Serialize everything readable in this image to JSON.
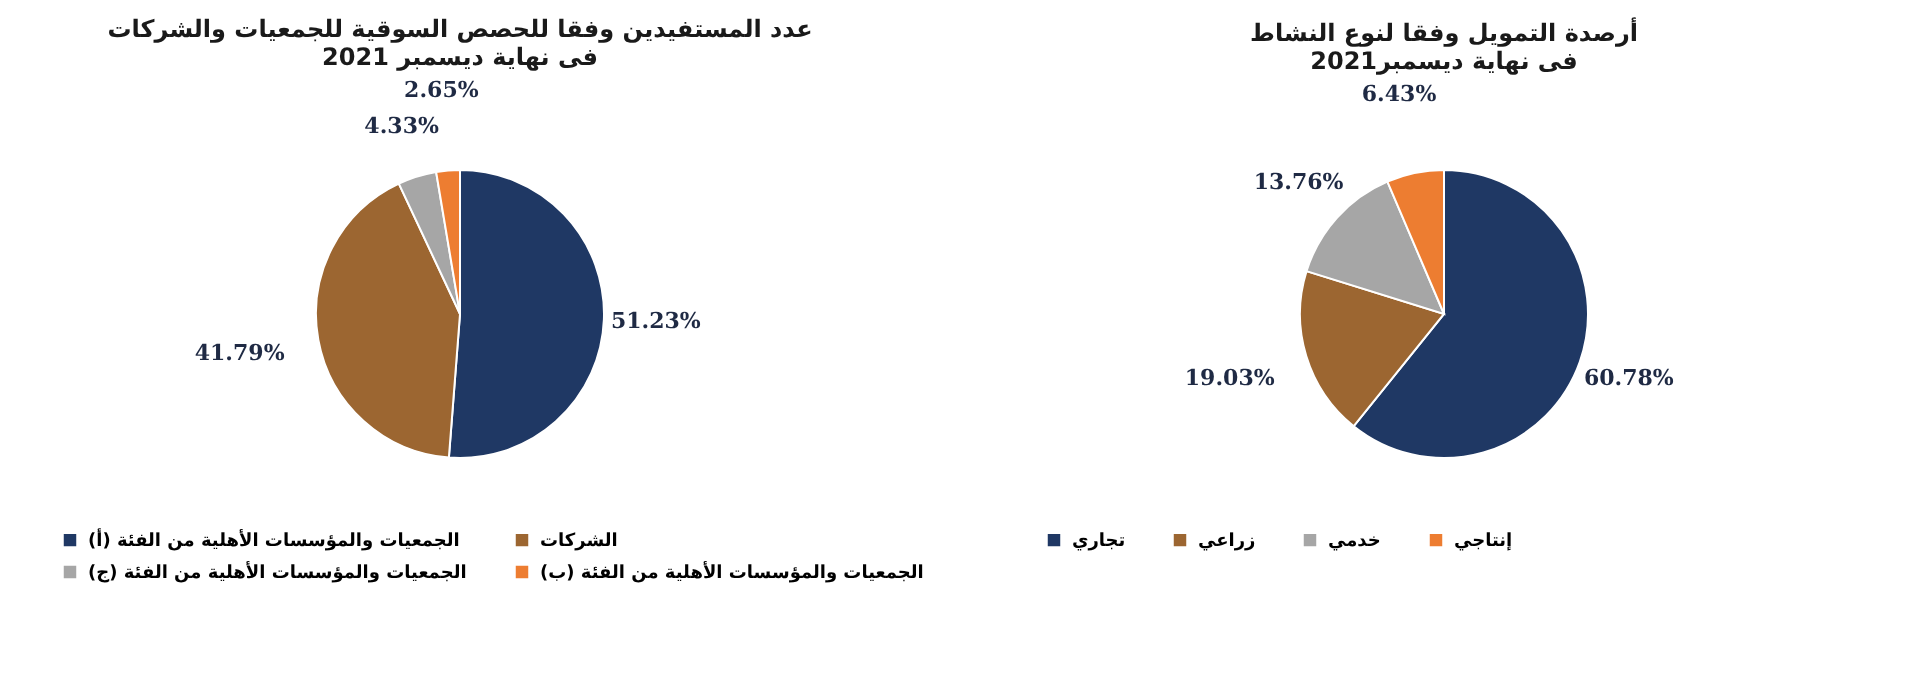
{
  "chart_data": [
    {
      "type": "pie",
      "title": "عدد المستفيدين وفقا للحصص السوقية للجمعيات والشركات فى نهاية ديسمبر 2021",
      "categories": [
        "الجمعيات والمؤسسات الأهلية من الفئة (أ)",
        "الشركات",
        "الجمعيات والمؤسسات الأهلية من الفئة (ج)",
        "الجمعيات والمؤسسات الأهلية من الفئة (ب)"
      ],
      "values": [
        51.23,
        41.79,
        4.33,
        2.65
      ],
      "value_labels": [
        "51.23%",
        "41.79%",
        "4.33%",
        "2.65%"
      ],
      "colors": [
        "#1f3864",
        "#9c6631",
        "#a6a6a6",
        "#ed7d31"
      ],
      "legend": "bottom"
    },
    {
      "type": "pie",
      "title": "أرصدة التمويل وفقا لنوع النشاط فى نهاية ديسمبر2021",
      "categories": [
        "تجاري",
        "زراعي",
        "خدمي",
        "إنتاجي"
      ],
      "values": [
        60.78,
        19.03,
        13.76,
        6.43
      ],
      "value_labels": [
        "60.78%",
        "19.03%",
        "13.76%",
        "6.43%"
      ],
      "colors": [
        "#1f3864",
        "#9c6631",
        "#a6a6a6",
        "#ed7d31"
      ],
      "legend": "bottom"
    }
  ]
}
